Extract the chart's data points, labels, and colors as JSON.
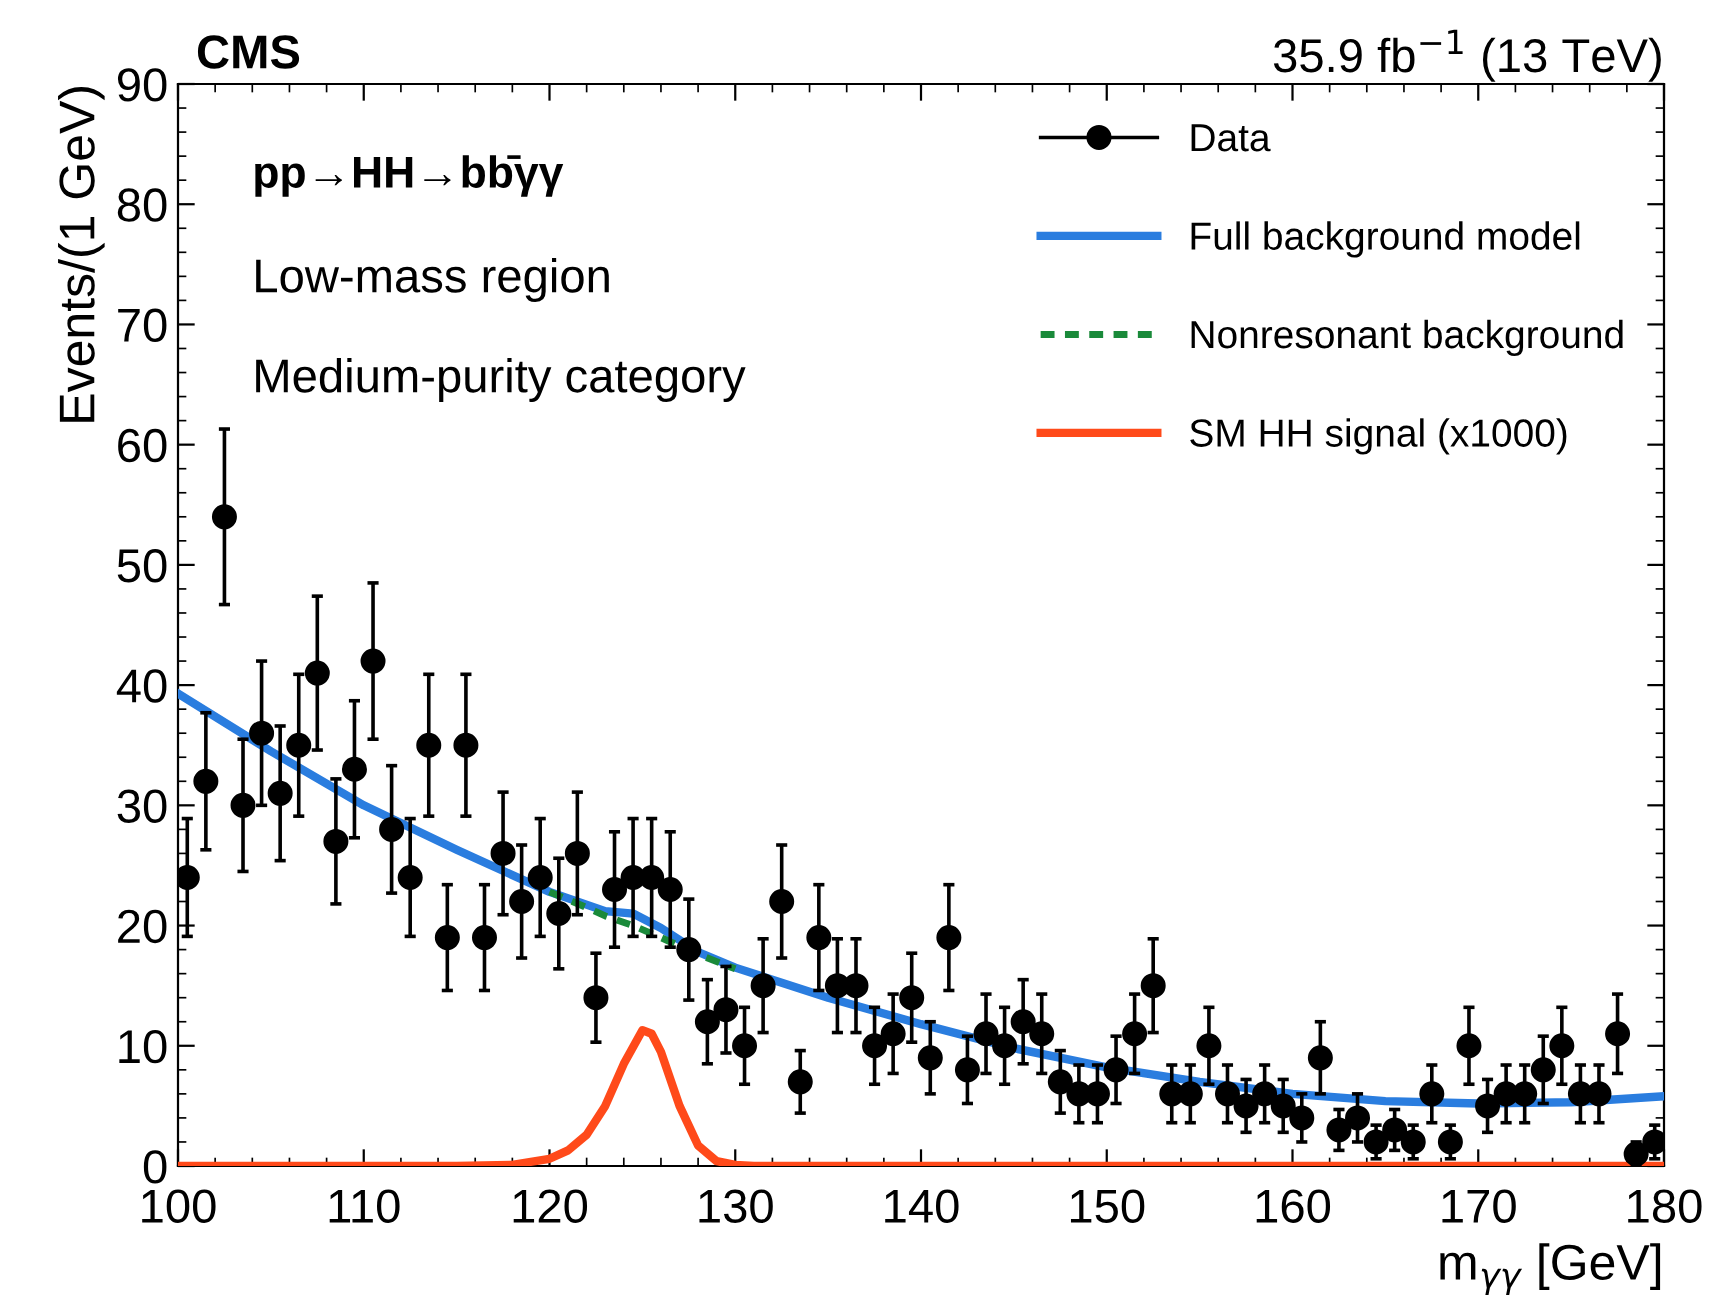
{
  "chart_data": {
    "type": "scatter",
    "title": "CMS",
    "subtitle": "35.9 fb$^{−1}$ (13 TeV)",
    "xlabel": "m$_{γγ}$ [GeV]",
    "ylabel": "Events/(1 GeV)",
    "annotations": [
      "pp→HH→bb̄γγ",
      "Low-mass region",
      "Medium-purity category"
    ],
    "xlim": [
      100,
      180
    ],
    "xticks": [
      100,
      110,
      120,
      130,
      140,
      150,
      160,
      170,
      180
    ],
    "ylim": [
      0,
      90
    ],
    "yticks": [
      0,
      10,
      20,
      30,
      40,
      50,
      60,
      70,
      80,
      90
    ],
    "legend": "top right",
    "grid": false,
    "marker": "circle",
    "series": [
      {
        "name": "Data",
        "color": "#000000",
        "x": [
          100.5,
          101.5,
          102.5,
          103.5,
          104.5,
          105.5,
          106.5,
          107.5,
          108.5,
          109.5,
          110.5,
          111.5,
          112.5,
          113.5,
          114.5,
          115.5,
          116.5,
          117.5,
          118.5,
          119.5,
          120.5,
          121.5,
          122.5,
          123.5,
          124.5,
          125.5,
          126.5,
          127.5,
          128.5,
          129.5,
          130.5,
          131.5,
          132.5,
          133.5,
          134.5,
          135.5,
          136.5,
          137.5,
          138.5,
          139.5,
          140.5,
          141.5,
          142.5,
          143.5,
          144.5,
          145.5,
          146.5,
          147.5,
          148.5,
          149.5,
          150.5,
          151.5,
          152.5,
          153.5,
          154.5,
          155.5,
          156.5,
          157.5,
          158.5,
          159.5,
          160.5,
          161.5,
          162.5,
          163.5,
          164.5,
          165.5,
          166.5,
          167.5,
          168.5,
          169.5,
          170.5,
          171.5,
          172.5,
          173.5,
          174.5,
          175.5,
          176.5,
          177.5,
          178.5,
          179.5
        ],
        "values": [
          24,
          32,
          54,
          30,
          36,
          31,
          35,
          41,
          27,
          33,
          42,
          28,
          24,
          35,
          19,
          35,
          19,
          26,
          22,
          24,
          21,
          26,
          14,
          23,
          24,
          24,
          23,
          18,
          12,
          13,
          10,
          15,
          22,
          7,
          19,
          15,
          15,
          10,
          11,
          14,
          9,
          19,
          8,
          11,
          10,
          12,
          11,
          7,
          6,
          6,
          8,
          11,
          15,
          6,
          6,
          10,
          6,
          5,
          6,
          5,
          4,
          9,
          3,
          4,
          2,
          3,
          2,
          6,
          2,
          10,
          5,
          6,
          6,
          8,
          10,
          6,
          6,
          11,
          1,
          2
        ],
        "errors": [
          4.9,
          5.7,
          7.3,
          5.5,
          6,
          5.6,
          5.9,
          6.4,
          5.2,
          5.7,
          6.5,
          5.3,
          4.9,
          5.9,
          4.4,
          5.9,
          4.4,
          5.1,
          4.7,
          4.9,
          4.6,
          5.1,
          3.7,
          4.8,
          4.9,
          4.9,
          4.8,
          4.2,
          3.5,
          3.6,
          3.2,
          3.9,
          4.7,
          2.6,
          4.4,
          3.9,
          3.9,
          3.2,
          3.3,
          3.7,
          3,
          4.4,
          2.8,
          3.3,
          3.2,
          3.5,
          3.3,
          2.6,
          2.4,
          2.4,
          2.8,
          3.3,
          3.9,
          2.4,
          2.4,
          3.2,
          2.4,
          2.2,
          2.4,
          2.2,
          2,
          3,
          1.7,
          2,
          1.4,
          1.7,
          1.4,
          2.4,
          1.4,
          3.2,
          2.2,
          2.4,
          2.4,
          2.8,
          3.2,
          2.4,
          2.4,
          3.3,
          1,
          1.4
        ]
      },
      {
        "name": "Full background model",
        "type": "line",
        "line_style": "solid",
        "marker": "none",
        "color": "#2a7ddf",
        "x": [
          100,
          105,
          110,
          115,
          120,
          123,
          124.5,
          126,
          128,
          130,
          135,
          140,
          145,
          150,
          155,
          160,
          165,
          170,
          175,
          180
        ],
        "values": [
          39.3,
          34.5,
          30,
          26.3,
          22.8,
          21.2,
          21,
          19.8,
          17.8,
          16.5,
          14,
          11.8,
          9.8,
          8.2,
          7,
          6,
          5.4,
          5.2,
          5.3,
          5.8
        ]
      },
      {
        "name": "Nonresonant background",
        "type": "line",
        "line_style": "dashed",
        "marker": "none",
        "color": "#1a8a3a",
        "x": [
          120,
          122,
          123,
          124.5,
          126,
          128,
          130
        ],
        "values": [
          22.8,
          21.5,
          20.8,
          20,
          19,
          17.6,
          16.4
        ]
      },
      {
        "name": "SM HH signal (x1000)",
        "type": "line",
        "line_style": "solid",
        "marker": "none",
        "color": "#ff4a1a",
        "x": [
          100,
          115,
          118,
          120,
          121,
          122,
          123,
          124,
          125,
          125.5,
          126,
          127,
          128,
          129,
          130,
          131,
          180
        ],
        "values": [
          0,
          0,
          0.1,
          0.6,
          1.3,
          2.6,
          5,
          8.5,
          11.3,
          11,
          9.5,
          5,
          1.7,
          0.4,
          0.1,
          0,
          0
        ]
      }
    ]
  }
}
